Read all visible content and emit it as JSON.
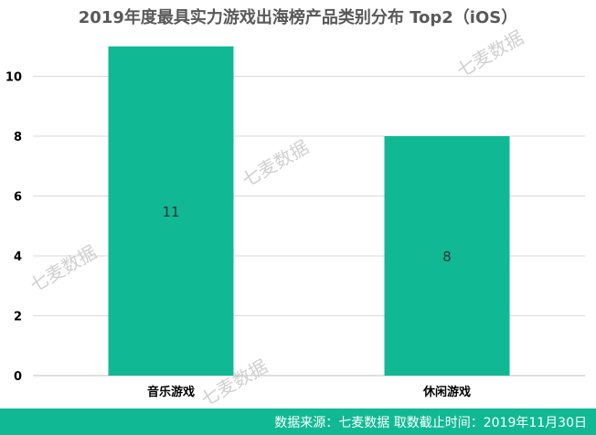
{
  "chart_data": {
    "type": "bar",
    "title": "2019年度最具实力游戏出海榜产品类别分布 Top2（iOS）",
    "categories": [
      "音乐游戏",
      "休闲游戏"
    ],
    "values": [
      11,
      8
    ],
    "data_labels": [
      "11",
      "8"
    ],
    "ylim": [
      0,
      12
    ],
    "yticks": [
      0,
      2,
      4,
      6,
      8,
      10
    ],
    "xlabel": "",
    "ylabel": "",
    "grid": true,
    "bar_color": "#10b994"
  },
  "watermark": "七麦数据",
  "footer": {
    "text": "数据来源：七麦数据   取数截止时间：2019年11月30日"
  },
  "colors": {
    "accent": "#10b994",
    "grid": "#d9d9d9",
    "title": "#595959"
  }
}
